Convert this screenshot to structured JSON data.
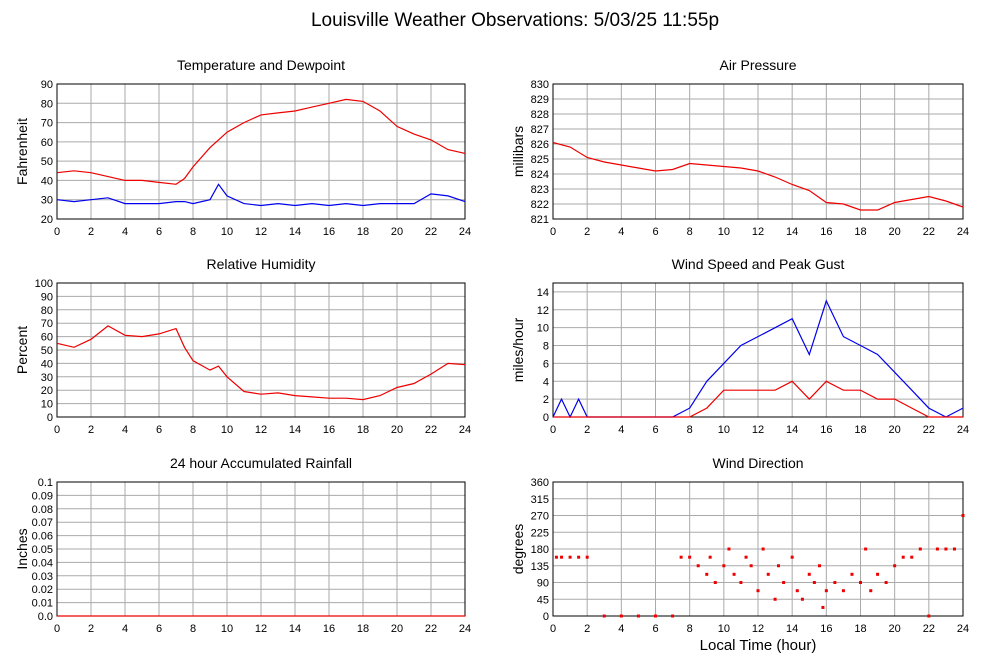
{
  "title": "Louisville Weather Observations: 5/03/25 11:55p",
  "chart_data": [
    {
      "type": "line",
      "title": "Temperature and Dewpoint",
      "ylabel": "Fahrenheit",
      "x": [
        0,
        1,
        2,
        3,
        4,
        5,
        6,
        7,
        7.5,
        8,
        9,
        9.5,
        10,
        11,
        12,
        13,
        14,
        15,
        16,
        17,
        18,
        19,
        20,
        21,
        22,
        23,
        24
      ],
      "series": [
        {
          "name": "Temperature",
          "color": "#ee0000",
          "values": [
            44,
            45,
            44,
            42,
            40,
            40,
            39,
            38,
            41,
            47,
            57,
            61,
            65,
            70,
            74,
            75,
            76,
            78,
            80,
            82,
            81,
            76,
            68,
            64,
            61,
            56,
            54
          ]
        },
        {
          "name": "Dewpoint",
          "color": "#0000ee",
          "values": [
            30,
            29,
            30,
            31,
            28,
            28,
            28,
            29,
            29,
            28,
            30,
            38,
            32,
            28,
            27,
            28,
            27,
            28,
            27,
            28,
            27,
            28,
            28,
            28,
            33,
            32,
            29
          ]
        }
      ],
      "xlim": [
        0,
        24
      ],
      "xticks": [
        0,
        2,
        4,
        6,
        8,
        10,
        12,
        14,
        16,
        18,
        20,
        22,
        24
      ],
      "ylim": [
        20,
        90
      ],
      "yticks": [
        20,
        30,
        40,
        50,
        60,
        70,
        80,
        90
      ],
      "grid": true
    },
    {
      "type": "line",
      "title": "Air Pressure",
      "ylabel": "millibars",
      "x": [
        0,
        1,
        2,
        3,
        4,
        5,
        6,
        7,
        8,
        9,
        10,
        11,
        12,
        13,
        14,
        15,
        16,
        17,
        18,
        19,
        20,
        21,
        22,
        23,
        24
      ],
      "series": [
        {
          "name": "Pressure",
          "color": "#ee0000",
          "values": [
            826.1,
            825.8,
            825.1,
            824.8,
            824.6,
            824.4,
            824.2,
            824.3,
            824.7,
            824.6,
            824.5,
            824.4,
            824.2,
            823.8,
            823.3,
            822.9,
            822.1,
            822.0,
            821.6,
            821.6,
            822.1,
            822.3,
            822.5,
            822.2,
            821.8
          ]
        }
      ],
      "xlim": [
        0,
        24
      ],
      "xticks": [
        0,
        2,
        4,
        6,
        8,
        10,
        12,
        14,
        16,
        18,
        20,
        22,
        24
      ],
      "ylim": [
        821,
        830
      ],
      "yticks": [
        821,
        822,
        823,
        824,
        825,
        826,
        827,
        828,
        829,
        830
      ],
      "grid": true
    },
    {
      "type": "line",
      "title": "Relative Humidity",
      "ylabel": "Percent",
      "x": [
        0,
        1,
        2,
        3,
        4,
        5,
        6,
        7,
        7.5,
        8,
        9,
        9.5,
        10,
        11,
        12,
        13,
        14,
        15,
        16,
        17,
        18,
        19,
        20,
        21,
        22,
        23,
        24
      ],
      "series": [
        {
          "name": "Humidity",
          "color": "#ee0000",
          "values": [
            55,
            52,
            58,
            68,
            61,
            60,
            62,
            66,
            52,
            42,
            35,
            38,
            30,
            19,
            17,
            18,
            16,
            15,
            14,
            14,
            13,
            16,
            22,
            25,
            32,
            40,
            39
          ]
        }
      ],
      "xlim": [
        0,
        24
      ],
      "xticks": [
        0,
        2,
        4,
        6,
        8,
        10,
        12,
        14,
        16,
        18,
        20,
        22,
        24
      ],
      "ylim": [
        0,
        100
      ],
      "yticks": [
        0,
        10,
        20,
        30,
        40,
        50,
        60,
        70,
        80,
        90,
        100
      ],
      "grid": true
    },
    {
      "type": "line",
      "title": "Wind Speed and Peak Gust",
      "ylabel": "miles/hour",
      "x": [
        0,
        0.5,
        1,
        1.5,
        2,
        3,
        4,
        5,
        6,
        7,
        8,
        9,
        10,
        11,
        12,
        13,
        14,
        15,
        16,
        17,
        18,
        19,
        20,
        21,
        22,
        23,
        24
      ],
      "series": [
        {
          "name": "Wind Speed",
          "color": "#0000ee",
          "values": [
            0,
            2,
            0,
            2,
            0,
            0,
            0,
            0,
            0,
            0,
            1,
            4,
            6,
            8,
            9,
            10,
            11,
            7,
            13,
            9,
            8,
            7,
            5,
            3,
            1,
            0,
            1
          ]
        },
        {
          "name": "Peak Gust",
          "color": "#ee0000",
          "values": [
            0,
            0,
            0,
            0,
            0,
            0,
            0,
            0,
            0,
            0,
            0,
            1,
            3,
            3,
            3,
            3,
            4,
            2,
            4,
            3,
            3,
            2,
            2,
            1,
            0,
            0,
            0
          ]
        }
      ],
      "xlim": [
        0,
        24
      ],
      "xticks": [
        0,
        2,
        4,
        6,
        8,
        10,
        12,
        14,
        16,
        18,
        20,
        22,
        24
      ],
      "ylim": [
        0,
        15
      ],
      "yticks": [
        0,
        2,
        4,
        6,
        8,
        10,
        12,
        14
      ],
      "grid": true
    },
    {
      "type": "line",
      "title": "24 hour Accumulated Rainfall",
      "ylabel": "Inches",
      "x": [
        0,
        24
      ],
      "series": [
        {
          "name": "Rainfall",
          "color": "#ee0000",
          "values": [
            0,
            0
          ]
        }
      ],
      "xlim": [
        0,
        24
      ],
      "xticks": [
        0,
        2,
        4,
        6,
        8,
        10,
        12,
        14,
        16,
        18,
        20,
        22,
        24
      ],
      "ylim": [
        0,
        0.1
      ],
      "yticks": [
        {
          "value": 0,
          "label": "0.0"
        },
        0.01,
        0.02,
        0.03,
        0.04,
        0.05,
        0.06,
        0.07,
        0.08,
        0.09,
        0.1
      ],
      "grid": true
    },
    {
      "type": "scatter",
      "title": "Wind Direction",
      "ylabel": "degrees",
      "xlabel": "Local Time (hour)",
      "x": [
        0.2,
        0.5,
        1,
        1.5,
        2,
        3,
        4,
        5,
        6,
        7,
        7.5,
        8,
        8.5,
        9,
        9.2,
        9.5,
        10,
        10.3,
        10.6,
        11,
        11.3,
        11.6,
        12,
        12.3,
        12.6,
        13,
        13.2,
        13.5,
        14,
        14.3,
        14.6,
        15,
        15.3,
        15.6,
        15.8,
        16,
        16.5,
        17,
        17.5,
        18,
        18.3,
        18.6,
        19,
        19.5,
        20,
        20.5,
        21,
        21.5,
        22,
        22.5,
        23,
        23.5,
        24
      ],
      "series": [
        {
          "name": "Direction",
          "color": "#ee0000",
          "values": [
            158,
            158,
            158,
            158,
            158,
            0,
            0,
            0,
            0,
            0,
            158,
            158,
            135,
            112,
            158,
            90,
            135,
            180,
            112,
            90,
            158,
            135,
            68,
            180,
            112,
            45,
            135,
            90,
            158,
            68,
            45,
            112,
            90,
            135,
            23,
            68,
            90,
            68,
            112,
            90,
            180,
            68,
            112,
            90,
            135,
            158,
            158,
            180,
            0,
            180,
            180,
            180,
            270
          ]
        }
      ],
      "xlim": [
        0,
        24
      ],
      "xticks": [
        0,
        2,
        4,
        6,
        8,
        10,
        12,
        14,
        16,
        18,
        20,
        22,
        24
      ],
      "ylim": [
        0,
        360
      ],
      "yticks": [
        0,
        45,
        90,
        135,
        180,
        225,
        270,
        315,
        360
      ],
      "grid": true
    }
  ]
}
